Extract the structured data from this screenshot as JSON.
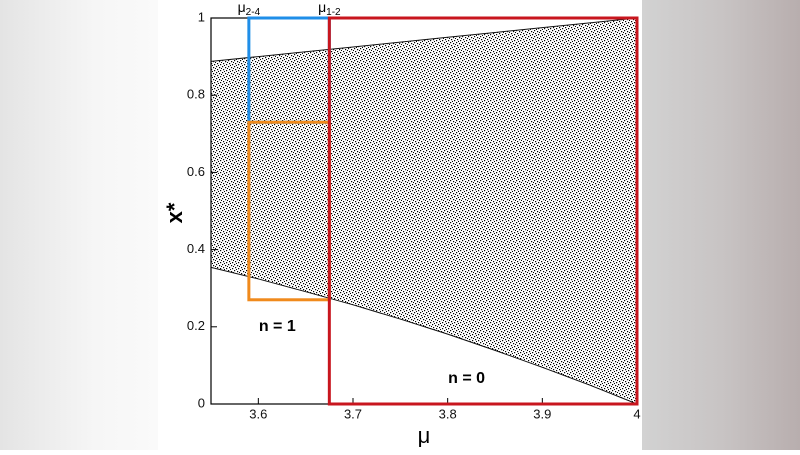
{
  "chart_data": {
    "type": "bifurcation",
    "x_label": "μ",
    "y_label": "x*",
    "xlim": [
      3.55,
      4.0
    ],
    "ylim": [
      0,
      1
    ],
    "xticks": [
      3.6,
      3.7,
      3.8,
      3.9,
      4
    ],
    "yticks": [
      0,
      0.2,
      0.4,
      0.6,
      0.8,
      1
    ],
    "x": [
      3.55,
      3.6,
      3.65,
      3.7,
      3.75,
      3.8,
      3.85,
      3.9,
      3.95,
      4.0
    ],
    "series": [
      {
        "name": "upper",
        "color": "#111111",
        "values": [
          0.8875,
          0.9,
          0.9125,
          0.925,
          0.9375,
          0.95,
          0.9625,
          0.975,
          0.9875,
          1
        ]
      },
      {
        "name": "lower",
        "color": "#111111",
        "values": [
          0.354,
          0.324,
          0.291,
          0.257,
          0.22,
          0.181,
          0.139,
          0.095,
          0.049,
          0
        ]
      }
    ],
    "regions": [
      {
        "color": "#1f8ee8",
        "xlim": [
          3.59,
          3.675
        ],
        "ylim": [
          0.73,
          1.0
        ]
      },
      {
        "label": "n = 1",
        "label_at": [
          3.62,
          0.2
        ],
        "color": "#f08a1c",
        "xlim": [
          3.59,
          3.675
        ],
        "ylim": [
          0.27,
          0.73
        ]
      },
      {
        "label": "n = 0",
        "label_at": [
          3.82,
          0.065
        ],
        "color": "#c8161e",
        "xlim": [
          3.675,
          4.0
        ],
        "ylim": [
          0,
          1
        ]
      }
    ],
    "markers": [
      {
        "symbol": "μ",
        "sub": "2-4",
        "x": 3.59
      },
      {
        "symbol": "μ",
        "sub": "1-2",
        "x": 3.675
      }
    ]
  }
}
